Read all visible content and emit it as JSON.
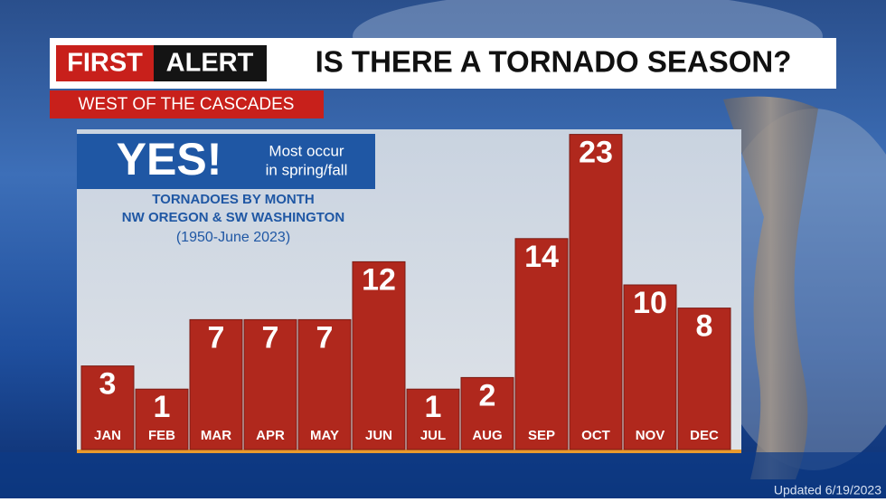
{
  "header": {
    "logo_first": "FIRST",
    "logo_alert": "ALERT",
    "title": "IS THERE A TORNADO SEASON?",
    "subtitle": "WEST OF THE CASCADES"
  },
  "callout": {
    "headline": "YES!",
    "text_lines": [
      "Most occur",
      "in spring/fall"
    ]
  },
  "footer": "Updated 6/19/2023",
  "chart_data": {
    "type": "bar",
    "title": "TORNADOES BY MONTH",
    "subtitle_lines": [
      "NW OREGON & SW WASHINGTON",
      "(1950-June 2023)"
    ],
    "categories": [
      "JAN",
      "FEB",
      "MAR",
      "APR",
      "MAY",
      "JUN",
      "JUL",
      "AUG",
      "SEP",
      "OCT",
      "NOV",
      "DEC"
    ],
    "values": [
      3,
      1,
      7,
      7,
      7,
      12,
      1,
      2,
      14,
      23,
      10,
      8
    ],
    "color": "#b0281d"
  }
}
